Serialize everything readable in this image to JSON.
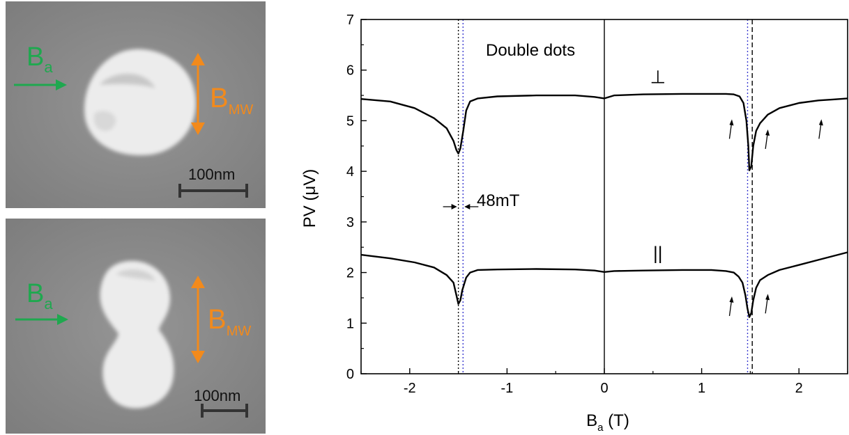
{
  "panels": {
    "top": {
      "field_label": "B",
      "field_subscript": "a",
      "mw_label": "B",
      "mw_subscript": "MW",
      "scale_label": "100nm"
    },
    "bottom": {
      "field_label": "B",
      "field_subscript": "a",
      "mw_label": "B",
      "mw_subscript": "MW",
      "scale_label": "100nm"
    }
  },
  "colors": {
    "field_arrow": "#1fa84f",
    "mw_arrow": "#f28a1c",
    "sem_background": "#8a8a8a",
    "particle": "#e6e6e6",
    "trace": "#000000",
    "blue_dotted": "#3a3ad0"
  },
  "chart_data": {
    "type": "line",
    "xlabel": "B",
    "xlabel_subscript": "a",
    "xlabel_unit": " (T)",
    "ylabel": "PV  (μV)",
    "xlim": [
      -2.5,
      2.5
    ],
    "ylim": [
      0,
      7
    ],
    "x_ticks": [
      -2,
      -1,
      0,
      1,
      2
    ],
    "y_ticks": [
      0,
      1,
      2,
      3,
      4,
      5,
      6,
      7
    ],
    "grid": false,
    "annotation_text": "Double dots",
    "interval_annotation": "48mT",
    "series": [
      {
        "name": "⊥",
        "x": [
          -2.5,
          -2.2,
          -1.95,
          -1.75,
          -1.62,
          -1.55,
          -1.52,
          -1.5,
          -1.48,
          -1.45,
          -1.42,
          -1.38,
          -1.3,
          -1.1,
          -0.7,
          -0.3,
          -0.1,
          0,
          0.1,
          0.4,
          0.8,
          1.1,
          1.25,
          1.33,
          1.39,
          1.43,
          1.46,
          1.48,
          1.49,
          1.51,
          1.53,
          1.56,
          1.6,
          1.68,
          1.8,
          2.0,
          2.2,
          2.35,
          2.5
        ],
        "values": [
          5.43,
          5.38,
          5.25,
          5.05,
          4.85,
          4.6,
          4.42,
          4.35,
          4.45,
          4.8,
          5.2,
          5.38,
          5.44,
          5.48,
          5.5,
          5.5,
          5.47,
          5.44,
          5.5,
          5.52,
          5.53,
          5.53,
          5.53,
          5.52,
          5.48,
          5.35,
          5.0,
          4.5,
          4.02,
          4.1,
          4.5,
          4.8,
          4.95,
          5.12,
          5.25,
          5.35,
          5.4,
          5.42,
          5.44
        ]
      },
      {
        "name": "||",
        "x": [
          -2.5,
          -2.2,
          -1.95,
          -1.75,
          -1.62,
          -1.55,
          -1.52,
          -1.5,
          -1.48,
          -1.46,
          -1.42,
          -1.38,
          -1.3,
          -1.1,
          -0.7,
          -0.3,
          -0.1,
          0,
          0.1,
          0.4,
          0.8,
          1.1,
          1.25,
          1.33,
          1.38,
          1.42,
          1.45,
          1.47,
          1.49,
          1.51,
          1.53,
          1.56,
          1.6,
          1.68,
          1.8,
          2.0,
          2.2,
          2.4,
          2.5
        ],
        "values": [
          2.35,
          2.28,
          2.2,
          2.1,
          1.95,
          1.8,
          1.55,
          1.38,
          1.45,
          1.65,
          1.9,
          2.0,
          2.05,
          2.06,
          2.07,
          2.06,
          2.04,
          2.01,
          2.03,
          2.04,
          2.05,
          2.05,
          2.03,
          2.0,
          1.92,
          1.8,
          1.55,
          1.3,
          1.12,
          1.2,
          1.45,
          1.7,
          1.85,
          1.95,
          2.05,
          2.15,
          2.25,
          2.35,
          2.4
        ]
      }
    ],
    "vertical_lines": [
      {
        "x": 0,
        "style": "solid",
        "color": "#000000"
      },
      {
        "x": -1.5,
        "style": "dotted",
        "color": "#000000"
      },
      {
        "x": -1.452,
        "style": "dotted",
        "color": "#3a3ad0"
      },
      {
        "x": 1.472,
        "style": "dotted",
        "color": "#3a3ad0"
      },
      {
        "x": 1.52,
        "style": "dashed",
        "color": "#000000"
      }
    ],
    "arrows": [
      {
        "series": "⊥",
        "x": 1.3,
        "y": 5.0
      },
      {
        "series": "⊥",
        "x": 1.67,
        "y": 4.8
      },
      {
        "series": "⊥",
        "x": 2.22,
        "y": 5.0
      },
      {
        "series": "||",
        "x": 1.3,
        "y": 1.5
      },
      {
        "series": "||",
        "x": 1.67,
        "y": 1.55
      }
    ]
  }
}
